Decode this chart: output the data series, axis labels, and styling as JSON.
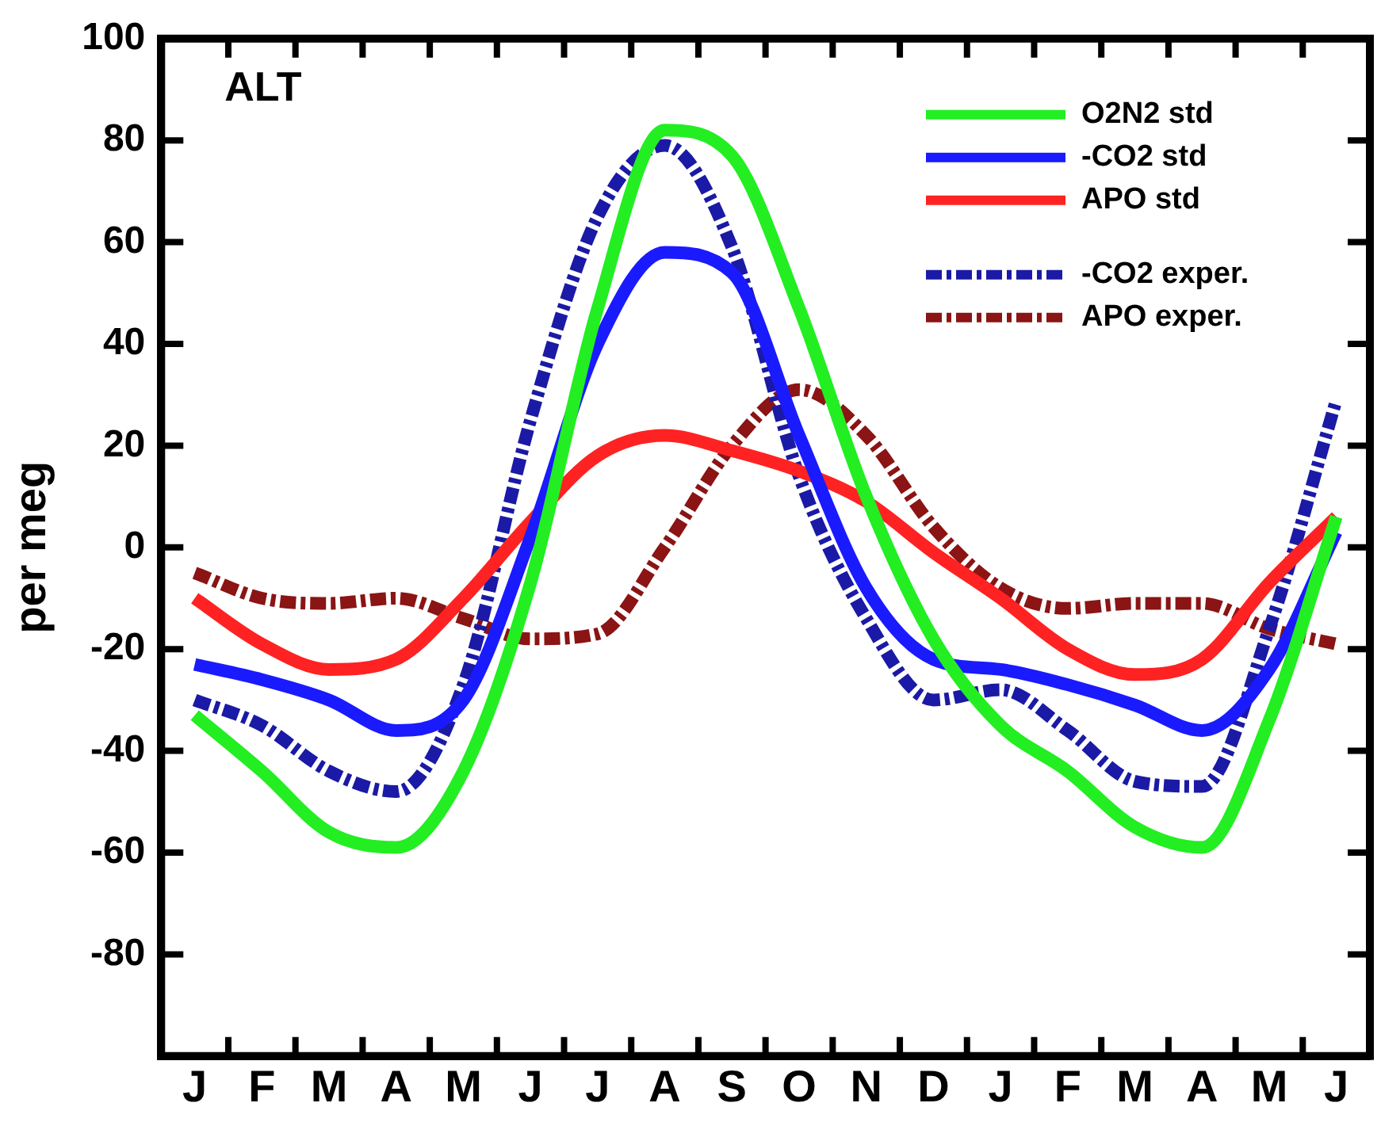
{
  "chart_data": {
    "type": "line",
    "title": "ALT",
    "ylabel": "per meg",
    "categories": [
      "J",
      "F",
      "M",
      "A",
      "M",
      "J",
      "J",
      "A",
      "S",
      "O",
      "N",
      "D",
      "J",
      "F",
      "M",
      "A",
      "M",
      "J"
    ],
    "ylim": [
      -100,
      100
    ],
    "yticks": [
      {
        "value": -100,
        "label": null
      },
      -80,
      -60,
      -40,
      -20,
      0,
      20,
      40,
      60,
      80,
      100
    ],
    "grid": false,
    "legend": "top right",
    "marker": "none",
    "series": [
      {
        "name": "O2N2 std",
        "color": "#22ee22",
        "line_style": "solid",
        "values": [
          -33,
          -44,
          -56,
          -59,
          -44,
          -7,
          47,
          82,
          77,
          47,
          10,
          -18,
          -35,
          -44,
          -55,
          -59,
          -34,
          6
        ]
      },
      {
        "name": "-CO2 std",
        "color": "#1a1aff",
        "line_style": "solid",
        "values": [
          -23,
          -26,
          -30,
          -36,
          -30,
          2,
          40,
          58,
          54,
          22,
          -8,
          -22,
          -24,
          -27,
          -31,
          -36,
          -24,
          3
        ]
      },
      {
        "name": "APO std",
        "color": "#ff2222",
        "line_style": "solid",
        "values": [
          -10,
          -19,
          -24,
          -22,
          -10,
          5,
          18,
          22,
          19,
          15,
          9,
          -1,
          -10,
          -20,
          -25,
          -22,
          -7,
          6
        ]
      },
      {
        "name": "-CO2 exper.",
        "color": "#1a1aa6",
        "line_style": "dashed",
        "values": [
          -30,
          -35,
          -44,
          -48,
          -27,
          25,
          65,
          79,
          59,
          14,
          -14,
          -30,
          -28,
          -36,
          -46,
          -47,
          -16,
          29
        ]
      },
      {
        "name": "APO exper.",
        "color": "#8b1414",
        "line_style": "dashed",
        "values": [
          -5,
          -10,
          -11,
          -10,
          -14,
          -18,
          -17,
          0,
          20,
          31,
          22,
          4,
          -8,
          -12,
          -11,
          -11,
          -16,
          -19
        ]
      }
    ]
  }
}
